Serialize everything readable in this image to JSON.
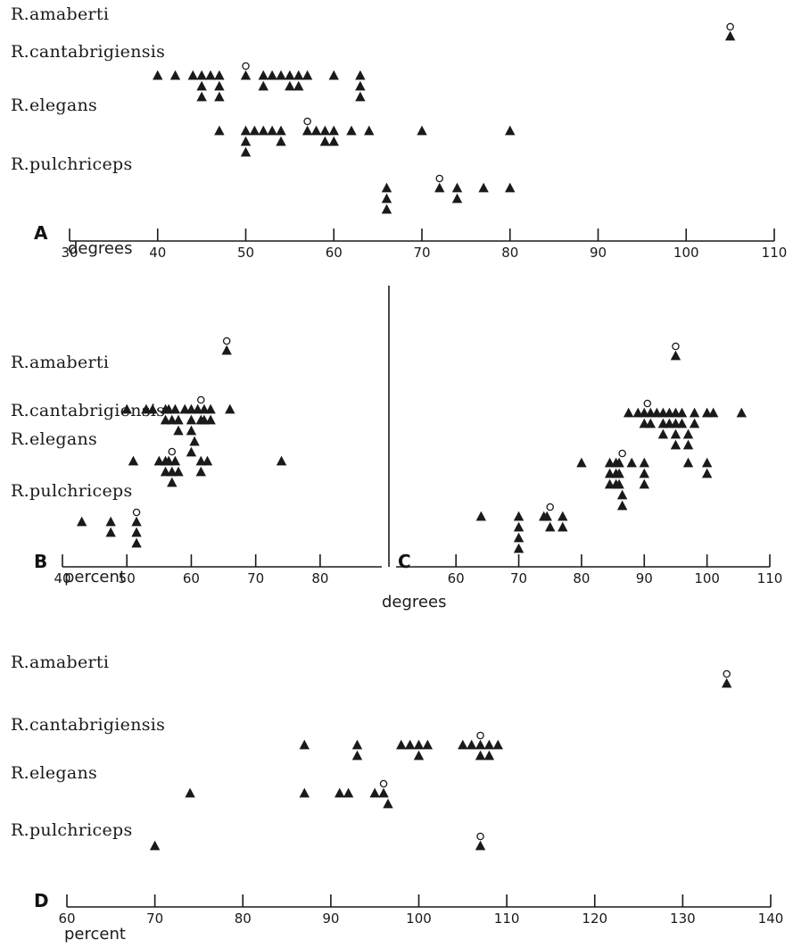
{
  "chart_data": [
    {
      "panel": "A",
      "type": "scatter",
      "xlabel": "degrees",
      "xlim": [
        30,
        110
      ],
      "xticks": [
        30,
        40,
        50,
        60,
        70,
        80,
        90,
        100,
        110
      ],
      "categories": [
        "R.amaberti",
        "R.cantabrigiensis",
        "R.elegans",
        "R.pulchriceps"
      ],
      "series": [
        {
          "category": "R.amaberti",
          "triangles": [
            105
          ],
          "open_circle": [
            105
          ]
        },
        {
          "category": "R.cantabrigiensis",
          "triangles": [
            40,
            42,
            44,
            45,
            45,
            45,
            46,
            47,
            47,
            47,
            50,
            52,
            52,
            53,
            54,
            55,
            55,
            56,
            56,
            57,
            60,
            63,
            63,
            63
          ],
          "open_circle": [
            50
          ]
        },
        {
          "category": "R.elegans",
          "triangles": [
            47,
            50,
            50,
            50,
            51,
            52,
            53,
            54,
            54,
            57,
            58,
            59,
            59,
            60,
            60,
            62,
            64,
            70,
            80
          ],
          "open_circle": [
            57
          ]
        },
        {
          "category": "R.pulchriceps",
          "triangles": [
            66,
            66,
            66,
            72,
            74,
            74,
            77,
            80
          ],
          "open_circle": [
            72
          ]
        }
      ]
    },
    {
      "panel": "B",
      "type": "scatter",
      "xlabel": "percent",
      "xlim": [
        40,
        85
      ],
      "xticks": [
        40,
        50,
        60,
        70,
        80
      ],
      "categories": [
        "R.amaberti",
        "R.cantabrigiensis",
        "R.elegans",
        "R.pulchriceps"
      ],
      "series": [
        {
          "category": "R.amaberti",
          "triangles": [
            65.5
          ],
          "open_circle": [
            65.5
          ]
        },
        {
          "category": "R.cantabrigiensis",
          "triangles": [
            50,
            53,
            54,
            56,
            56,
            56.5,
            57,
            57.5,
            58,
            59,
            60,
            60,
            60,
            60.5,
            61,
            61.5,
            62,
            62,
            63,
            63,
            66,
            58,
            60
          ],
          "open_circle": [
            61.5
          ]
        },
        {
          "category": "R.elegans",
          "triangles": [
            51,
            55,
            56,
            56,
            56.5,
            57,
            57,
            57.5,
            58,
            61.5,
            61.5,
            62.5,
            74
          ],
          "open_circle": [
            57
          ]
        },
        {
          "category": "R.pulchriceps",
          "triangles": [
            43,
            47.5,
            47.5,
            51.5,
            51.5,
            51.5
          ],
          "open_circle": [
            51.5
          ]
        }
      ]
    },
    {
      "panel": "C",
      "type": "scatter",
      "xlabel": "degrees",
      "xlim": [
        55,
        110
      ],
      "xticks": [
        60,
        70,
        80,
        90,
        100,
        110
      ],
      "categories": [
        "R.amaberti",
        "R.cantabrigiensis",
        "R.elegans",
        "R.pulchriceps"
      ],
      "series": [
        {
          "category": "R.amaberti",
          "triangles": [
            95
          ],
          "open_circle": [
            95
          ]
        },
        {
          "category": "R.cantabrigiensis",
          "triangles": [
            87.5,
            89,
            90,
            90,
            91,
            91,
            92,
            93,
            93,
            93,
            94,
            94,
            95,
            95,
            95,
            95,
            96,
            96,
            97,
            97,
            98,
            98,
            100,
            101,
            105.5
          ],
          "open_circle": [
            90.5
          ]
        },
        {
          "category": "R.elegans",
          "triangles": [
            80,
            84.5,
            84.5,
            84.5,
            85.5,
            85.5,
            85.5,
            86,
            86,
            86,
            86.5,
            86.5,
            88,
            90,
            90,
            90,
            97,
            100,
            100
          ],
          "open_circle": [
            86.5
          ]
        },
        {
          "category": "R.pulchriceps",
          "triangles": [
            64,
            70,
            70,
            70,
            70,
            74,
            74.5,
            75,
            77,
            77
          ],
          "open_circle": [
            75
          ]
        }
      ]
    },
    {
      "panel": "D",
      "type": "scatter",
      "xlabel": "percent",
      "xlim": [
        60,
        140
      ],
      "xticks": [
        60,
        70,
        80,
        90,
        100,
        110,
        120,
        130,
        140
      ],
      "categories": [
        "R.amaberti",
        "R.cantabrigiensis",
        "R.elegans",
        "R.pulchriceps"
      ],
      "series": [
        {
          "category": "R.amaberti",
          "triangles": [
            135
          ],
          "open_circle": [
            135
          ]
        },
        {
          "category": "R.cantabrigiensis",
          "triangles": [
            87,
            93,
            93,
            98,
            99,
            100,
            101,
            100,
            105,
            106,
            107,
            108,
            109,
            107,
            108
          ],
          "open_circle": [
            107
          ]
        },
        {
          "category": "R.elegans",
          "triangles": [
            74,
            87,
            91,
            92,
            95,
            96,
            96.5
          ],
          "open_circle": [
            96
          ]
        },
        {
          "category": "R.pulchriceps",
          "triangles": [
            70,
            107
          ],
          "open_circle": [
            107
          ]
        }
      ]
    }
  ]
}
